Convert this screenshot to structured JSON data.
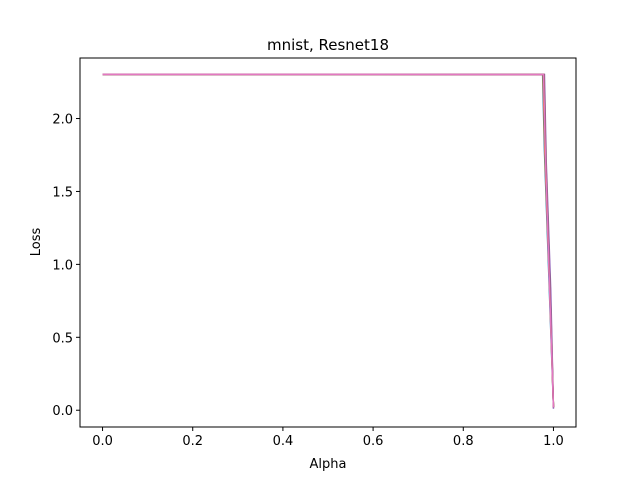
{
  "chart_data": {
    "type": "line",
    "title": "mnist, Resnet18",
    "xlabel": "Alpha",
    "ylabel": "Loss",
    "xlim": [
      -0.05,
      1.05
    ],
    "ylim": [
      -0.115,
      2.415
    ],
    "xticks": [
      0.0,
      0.2,
      0.4,
      0.6,
      0.8,
      1.0
    ],
    "xtick_labels": [
      "0.0",
      "0.2",
      "0.4",
      "0.6",
      "0.8",
      "1.0"
    ],
    "yticks": [
      0.0,
      0.5,
      1.0,
      1.5,
      2.0
    ],
    "ytick_labels": [
      "0.0",
      "0.5",
      "1.0",
      "1.5",
      "2.0"
    ],
    "grid": false,
    "series": [
      {
        "color": "#1f77b4",
        "x": [
          0.0,
          0.976,
          0.98,
          0.99,
          1.0
        ],
        "y": [
          2.303,
          2.302,
          1.78,
          0.9,
          0.02
        ]
      },
      {
        "color": "#ff7f0e",
        "x": [
          0.0,
          0.977,
          0.981,
          0.991,
          1.0
        ],
        "y": [
          2.303,
          2.302,
          1.76,
          0.88,
          0.02
        ]
      },
      {
        "color": "#2ca02c",
        "x": [
          0.0,
          0.978,
          0.982,
          0.992,
          1.0
        ],
        "y": [
          2.303,
          2.302,
          1.74,
          0.86,
          0.02
        ]
      },
      {
        "color": "#d62728",
        "x": [
          0.0,
          0.979,
          0.983,
          0.993,
          1.0
        ],
        "y": [
          2.303,
          2.302,
          1.72,
          0.84,
          0.02
        ]
      },
      {
        "color": "#9467bd",
        "x": [
          0.0,
          0.98,
          0.984,
          0.994,
          1.0
        ],
        "y": [
          2.303,
          2.302,
          1.7,
          0.82,
          0.01
        ]
      },
      {
        "color": "#8c564b",
        "x": [
          0.0,
          0.979,
          0.983,
          0.992,
          1.0
        ],
        "y": [
          2.303,
          2.302,
          1.73,
          0.85,
          0.02
        ]
      },
      {
        "color": "#e377c2",
        "x": [
          0.0,
          0.978,
          0.982,
          0.991,
          1.0
        ],
        "y": [
          2.303,
          2.302,
          1.75,
          0.87,
          0.02
        ]
      }
    ]
  }
}
